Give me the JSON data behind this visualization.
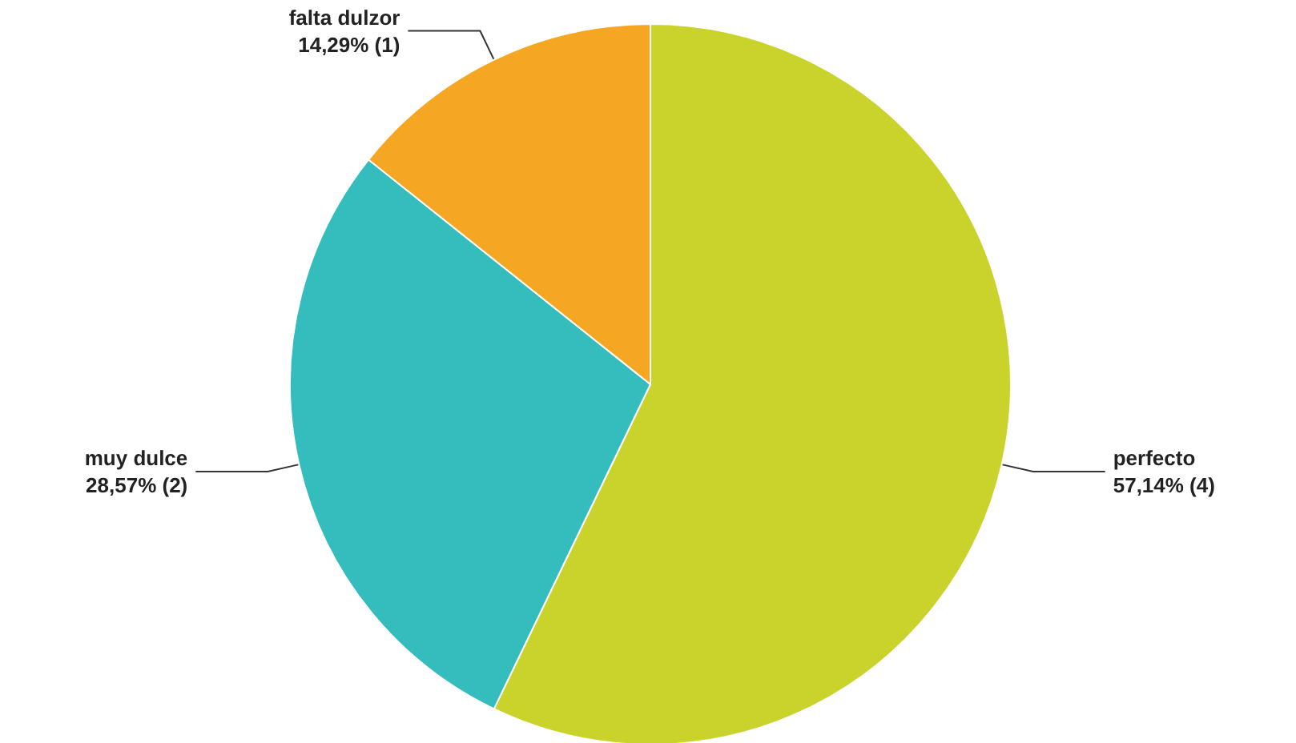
{
  "chart_data": {
    "type": "pie",
    "categories": [
      "perfecto",
      "muy dulce",
      "falta dulzor"
    ],
    "values": [
      4,
      2,
      1
    ],
    "value_labels": [
      "57,14% (4)",
      "28,57% (2)",
      "14,29% (1)"
    ],
    "colors": [
      "#c9d32b",
      "#35bcbc",
      "#f5a623"
    ]
  }
}
